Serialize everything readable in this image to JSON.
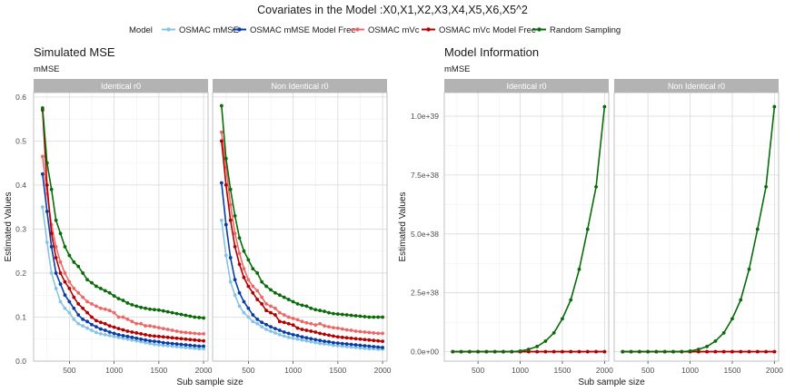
{
  "title": "Covariates in the Model :X0,X1,X2,X3,X4,X5,X6,X5^2",
  "legend": {
    "title": "Model",
    "items": [
      {
        "label": "OSMAC mMSE",
        "color": "#87c4e4"
      },
      {
        "label": "OSMAC mMSE Model Free",
        "color": "#0a3ca8"
      },
      {
        "label": "OSMAC mVc",
        "color": "#ee6767"
      },
      {
        "label": "OSMAC mVc Model Free",
        "color": "#b30000"
      },
      {
        "label": "Random Sampling",
        "color": "#0a6b0a"
      }
    ]
  },
  "xlabel_common": "Sub sample size",
  "ylabel_common": "Estimated Values",
  "chart_data": [
    {
      "type": "line",
      "title": "Simulated MSE",
      "subtitle": "mMSE",
      "xlabel": "Sub sample size",
      "ylabel": "Estimated Values",
      "xlim": [
        100,
        2050
      ],
      "xticks": [
        500,
        1000,
        1500,
        2000
      ],
      "ylim": [
        0,
        0.61
      ],
      "yticks": [
        0.0,
        0.1,
        0.2,
        0.3,
        0.4,
        0.5,
        0.6
      ],
      "ytick_labels": [
        "0.0",
        "0.1",
        "0.2",
        "0.3",
        "0.4",
        "0.5",
        "0.6"
      ],
      "x": [
        200,
        250,
        300,
        350,
        400,
        450,
        500,
        550,
        600,
        650,
        700,
        750,
        800,
        850,
        900,
        950,
        1000,
        1050,
        1100,
        1150,
        1200,
        1250,
        1300,
        1350,
        1400,
        1450,
        1500,
        1550,
        1600,
        1650,
        1700,
        1750,
        1800,
        1850,
        1900,
        1950,
        2000
      ],
      "facets": [
        {
          "strip": "Identical r0",
          "series": [
            {
              "name": "OSMAC mMSE",
              "values": [
                0.35,
                0.27,
                0.2,
                0.165,
                0.135,
                0.12,
                0.11,
                0.095,
                0.085,
                0.08,
                0.075,
                0.07,
                0.065,
                0.062,
                0.06,
                0.058,
                0.056,
                0.054,
                0.052,
                0.05,
                0.048,
                0.046,
                0.044,
                0.042,
                0.04,
                0.038,
                0.037,
                0.036,
                0.035,
                0.034,
                0.033,
                0.032,
                0.031,
                0.03,
                0.029,
                0.028,
                0.028
              ]
            },
            {
              "name": "OSMAC mMSE Model Free",
              "values": [
                0.425,
                0.34,
                0.26,
                0.2,
                0.175,
                0.15,
                0.135,
                0.12,
                0.105,
                0.095,
                0.09,
                0.083,
                0.078,
                0.073,
                0.07,
                0.066,
                0.063,
                0.06,
                0.058,
                0.056,
                0.054,
                0.052,
                0.05,
                0.048,
                0.046,
                0.045,
                0.044,
                0.042,
                0.041,
                0.04,
                0.039,
                0.038,
                0.037,
                0.036,
                0.035,
                0.034,
                0.034
              ]
            },
            {
              "name": "OSMAC mVc",
              "values": [
                0.465,
                0.38,
                0.31,
                0.26,
                0.225,
                0.2,
                0.18,
                0.165,
                0.155,
                0.145,
                0.135,
                0.13,
                0.125,
                0.12,
                0.118,
                0.115,
                0.11,
                0.1,
                0.1,
                0.095,
                0.09,
                0.085,
                0.085,
                0.08,
                0.08,
                0.078,
                0.076,
                0.074,
                0.072,
                0.07,
                0.068,
                0.066,
                0.065,
                0.064,
                0.063,
                0.062,
                0.062
              ]
            },
            {
              "name": "OSMAC mVc Model Free",
              "values": [
                0.57,
                0.4,
                0.29,
                0.235,
                0.2,
                0.18,
                0.165,
                0.145,
                0.13,
                0.12,
                0.11,
                0.1,
                0.092,
                0.088,
                0.085,
                0.08,
                0.077,
                0.074,
                0.071,
                0.068,
                0.066,
                0.064,
                0.062,
                0.06,
                0.058,
                0.057,
                0.056,
                0.055,
                0.054,
                0.053,
                0.052,
                0.051,
                0.05,
                0.049,
                0.048,
                0.047,
                0.046
              ]
            },
            {
              "name": "Random Sampling",
              "values": [
                0.575,
                0.45,
                0.39,
                0.32,
                0.29,
                0.26,
                0.24,
                0.225,
                0.215,
                0.2,
                0.185,
                0.178,
                0.17,
                0.165,
                0.16,
                0.155,
                0.148,
                0.142,
                0.138,
                0.132,
                0.128,
                0.125,
                0.122,
                0.12,
                0.118,
                0.117,
                0.116,
                0.114,
                0.112,
                0.11,
                0.108,
                0.106,
                0.104,
                0.102,
                0.1,
                0.099,
                0.098
              ]
            }
          ]
        },
        {
          "strip": "Non Identical r0",
          "series": [
            {
              "name": "OSMAC mMSE",
              "values": [
                0.32,
                0.24,
                0.18,
                0.15,
                0.125,
                0.11,
                0.1,
                0.09,
                0.085,
                0.078,
                0.072,
                0.068,
                0.064,
                0.06,
                0.057,
                0.054,
                0.052,
                0.05,
                0.048,
                0.046,
                0.044,
                0.042,
                0.04,
                0.039,
                0.038,
                0.036,
                0.035,
                0.034,
                0.033,
                0.032,
                0.031,
                0.03,
                0.029,
                0.028,
                0.028,
                0.027,
                0.027
              ]
            },
            {
              "name": "OSMAC mMSE Model Free",
              "values": [
                0.405,
                0.31,
                0.235,
                0.185,
                0.155,
                0.135,
                0.12,
                0.105,
                0.095,
                0.088,
                0.083,
                0.078,
                0.074,
                0.07,
                0.066,
                0.063,
                0.06,
                0.058,
                0.055,
                0.053,
                0.051,
                0.049,
                0.047,
                0.045,
                0.044,
                0.042,
                0.041,
                0.04,
                0.039,
                0.038,
                0.037,
                0.036,
                0.035,
                0.034,
                0.033,
                0.032,
                0.031
              ]
            },
            {
              "name": "OSMAC mVc",
              "values": [
                0.52,
                0.44,
                0.355,
                0.29,
                0.245,
                0.21,
                0.185,
                0.17,
                0.16,
                0.145,
                0.13,
                0.125,
                0.12,
                0.11,
                0.105,
                0.1,
                0.097,
                0.094,
                0.09,
                0.087,
                0.085,
                0.082,
                0.085,
                0.08,
                0.078,
                0.076,
                0.075,
                0.073,
                0.071,
                0.07,
                0.068,
                0.067,
                0.066,
                0.065,
                0.064,
                0.063,
                0.063
              ]
            },
            {
              "name": "OSMAC mVc Model Free",
              "values": [
                0.5,
                0.4,
                0.32,
                0.26,
                0.22,
                0.19,
                0.17,
                0.155,
                0.14,
                0.13,
                0.115,
                0.11,
                0.105,
                0.09,
                0.088,
                0.085,
                0.082,
                0.075,
                0.072,
                0.07,
                0.068,
                0.066,
                0.063,
                0.061,
                0.059,
                0.057,
                0.055,
                0.054,
                0.053,
                0.052,
                0.051,
                0.05,
                0.049,
                0.048,
                0.047,
                0.046,
                0.045
              ]
            },
            {
              "name": "Random Sampling",
              "values": [
                0.58,
                0.46,
                0.39,
                0.33,
                0.28,
                0.25,
                0.23,
                0.21,
                0.2,
                0.18,
                0.17,
                0.162,
                0.155,
                0.15,
                0.145,
                0.14,
                0.135,
                0.13,
                0.127,
                0.125,
                0.12,
                0.117,
                0.115,
                0.113,
                0.11,
                0.108,
                0.107,
                0.106,
                0.105,
                0.104,
                0.103,
                0.102,
                0.101,
                0.1,
                0.1,
                0.1,
                0.1
              ]
            }
          ]
        }
      ]
    },
    {
      "type": "line",
      "title": "Model Information",
      "subtitle": "mMSE",
      "xlabel": "Sub sample size",
      "ylabel": "Estimated Values",
      "xlim": [
        100,
        2050
      ],
      "xticks": [
        500,
        1000,
        1500,
        2000
      ],
      "ylim": [
        -4e+37,
        1.1e+39
      ],
      "yticks": [
        0,
        2.5e+38,
        5e+38,
        7.5e+38,
        1e+39
      ],
      "ytick_labels": [
        "0.0e+00",
        "2.5e+38",
        "5.0e+38",
        "7.5e+38",
        "1.0e+39"
      ],
      "x": [
        200,
        300,
        400,
        500,
        600,
        700,
        800,
        900,
        1000,
        1100,
        1200,
        1300,
        1400,
        1500,
        1600,
        1700,
        1800,
        1900,
        2000
      ],
      "facets": [
        {
          "strip": "Identical r0",
          "series": [
            {
              "name": "OSMAC mMSE",
              "values": [
                0,
                0,
                0,
                0,
                0,
                0,
                0,
                0,
                0,
                0,
                0,
                0,
                0,
                0,
                0,
                0,
                0,
                0,
                0
              ]
            },
            {
              "name": "OSMAC mMSE Model Free",
              "values": [
                0,
                0,
                0,
                0,
                0,
                0,
                0,
                0,
                0,
                0,
                0,
                0,
                0,
                0,
                0,
                0,
                0,
                0,
                0
              ]
            },
            {
              "name": "OSMAC mVc",
              "values": [
                0,
                0,
                0,
                0,
                0,
                0,
                0,
                0,
                0,
                0,
                0,
                0,
                0,
                0,
                0,
                0,
                0,
                0,
                0
              ]
            },
            {
              "name": "OSMAC mVc Model Free",
              "values": [
                0,
                0,
                0,
                0,
                0,
                0,
                0,
                0,
                0,
                0,
                0,
                0,
                0,
                0,
                0,
                0,
                0,
                0,
                0
              ]
            },
            {
              "name": "Random Sampling",
              "values": [
                0,
                0,
                0,
                0,
                0,
                0,
                0,
                0,
                3e+36,
                1e+37,
                2.2e+37,
                4.5e+37,
                8e+37,
                1.4e+38,
                2.2e+38,
                3.5e+38,
                5.2e+38,
                7e+38,
                1.04e+39
              ]
            }
          ]
        },
        {
          "strip": "Non Identical r0",
          "series": [
            {
              "name": "OSMAC mMSE",
              "values": [
                0,
                0,
                0,
                0,
                0,
                0,
                0,
                0,
                0,
                0,
                0,
                0,
                0,
                0,
                0,
                0,
                0,
                0,
                0
              ]
            },
            {
              "name": "OSMAC mMSE Model Free",
              "values": [
                0,
                0,
                0,
                0,
                0,
                0,
                0,
                0,
                0,
                0,
                0,
                0,
                0,
                0,
                0,
                0,
                0,
                0,
                0
              ]
            },
            {
              "name": "OSMAC mVc",
              "values": [
                0,
                0,
                0,
                0,
                0,
                0,
                0,
                0,
                0,
                0,
                0,
                0,
                0,
                0,
                0,
                0,
                0,
                0,
                0
              ]
            },
            {
              "name": "OSMAC mVc Model Free",
              "values": [
                0,
                0,
                0,
                0,
                0,
                0,
                0,
                0,
                0,
                0,
                0,
                0,
                0,
                0,
                0,
                0,
                0,
                0,
                0
              ]
            },
            {
              "name": "Random Sampling",
              "values": [
                0,
                0,
                0,
                0,
                0,
                0,
                0,
                0,
                3e+36,
                1e+37,
                2.2e+37,
                4.5e+37,
                8e+37,
                1.4e+38,
                2.2e+38,
                3.5e+38,
                5.2e+38,
                7e+38,
                1.04e+39
              ]
            }
          ]
        }
      ]
    }
  ]
}
